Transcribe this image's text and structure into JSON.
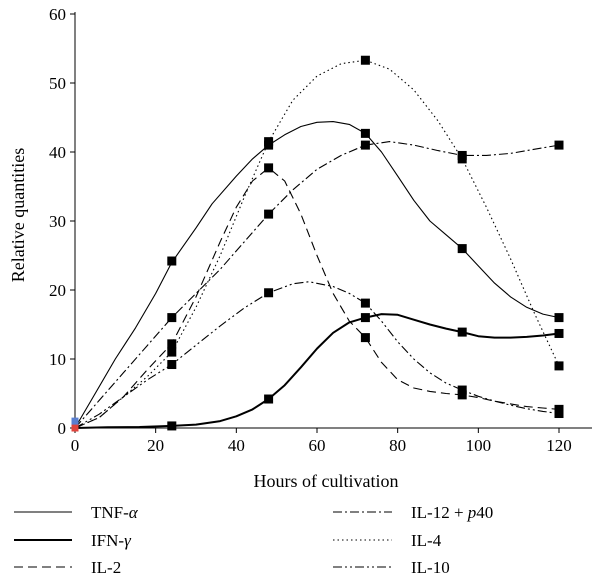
{
  "chart_data": {
    "type": "line",
    "title": "",
    "xlabel": "Hours of cultivation",
    "ylabel": "Relative quantities",
    "xlim": [
      0,
      128
    ],
    "ylim": [
      0,
      60
    ],
    "xticks": [
      0,
      20,
      40,
      60,
      80,
      100,
      120
    ],
    "yticks": [
      0,
      10,
      20,
      30,
      40,
      50,
      60
    ],
    "grid": false,
    "legend_position": "bottom",
    "series": [
      {
        "name": "TNF-α",
        "label_pre": "TNF-",
        "label_italic": "α",
        "label_post": "",
        "style": "solid",
        "weight": "thin",
        "points": [
          [
            0,
            0
          ],
          [
            24,
            24.2
          ],
          [
            48,
            41
          ],
          [
            72,
            42.7
          ],
          [
            96,
            26
          ],
          [
            120,
            16
          ]
        ],
        "curve": [
          [
            0,
            0
          ],
          [
            5,
            5
          ],
          [
            10,
            10
          ],
          [
            15,
            14.5
          ],
          [
            20,
            19.5
          ],
          [
            24,
            24
          ],
          [
            30,
            29
          ],
          [
            34,
            32.5
          ],
          [
            40,
            36.5
          ],
          [
            44,
            39
          ],
          [
            48,
            41
          ],
          [
            52,
            42.5
          ],
          [
            56,
            43.7
          ],
          [
            60,
            44.3
          ],
          [
            64,
            44.4
          ],
          [
            68,
            44
          ],
          [
            72,
            42.7
          ],
          [
            76,
            40
          ],
          [
            80,
            36.5
          ],
          [
            84,
            33
          ],
          [
            88,
            30
          ],
          [
            92,
            28
          ],
          [
            96,
            26
          ],
          [
            100,
            23.5
          ],
          [
            104,
            21
          ],
          [
            108,
            19
          ],
          [
            112,
            17.5
          ],
          [
            116,
            16.5
          ],
          [
            120,
            16
          ]
        ]
      },
      {
        "name": "IFN-γ",
        "label_pre": "IFN-",
        "label_italic": "γ",
        "label_post": "",
        "style": "solid",
        "weight": "thick",
        "points": [
          [
            0,
            0
          ],
          [
            24,
            0.3
          ],
          [
            48,
            4.2
          ],
          [
            72,
            16
          ],
          [
            96,
            13.9
          ],
          [
            120,
            13.7
          ]
        ],
        "curve": [
          [
            0,
            0
          ],
          [
            8,
            0.1
          ],
          [
            16,
            0.15
          ],
          [
            24,
            0.3
          ],
          [
            30,
            0.5
          ],
          [
            36,
            1
          ],
          [
            40,
            1.7
          ],
          [
            44,
            2.7
          ],
          [
            48,
            4.2
          ],
          [
            52,
            6.2
          ],
          [
            56,
            8.8
          ],
          [
            60,
            11.5
          ],
          [
            64,
            13.8
          ],
          [
            68,
            15.3
          ],
          [
            72,
            16
          ],
          [
            76,
            16.5
          ],
          [
            80,
            16.4
          ],
          [
            84,
            15.7
          ],
          [
            88,
            15
          ],
          [
            92,
            14.4
          ],
          [
            96,
            13.9
          ],
          [
            100,
            13.3
          ],
          [
            104,
            13.1
          ],
          [
            108,
            13.1
          ],
          [
            112,
            13.2
          ],
          [
            116,
            13.4
          ],
          [
            120,
            13.7
          ]
        ]
      },
      {
        "name": "IL-2",
        "label_pre": "IL-2",
        "label_italic": "",
        "label_post": "",
        "style": "dashed",
        "weight": "thin",
        "points": [
          [
            0,
            0
          ],
          [
            24,
            12.2
          ],
          [
            48,
            37.7
          ],
          [
            72,
            13.1
          ],
          [
            96,
            4.8
          ],
          [
            120,
            2.7
          ]
        ],
        "curve": [
          [
            0,
            0
          ],
          [
            6,
            1.5
          ],
          [
            12,
            4.5
          ],
          [
            18,
            8.5
          ],
          [
            24,
            12.2
          ],
          [
            30,
            19
          ],
          [
            36,
            27
          ],
          [
            40,
            32
          ],
          [
            44,
            35.8
          ],
          [
            48,
            37.7
          ],
          [
            52,
            35.8
          ],
          [
            56,
            31
          ],
          [
            60,
            25
          ],
          [
            64,
            19.5
          ],
          [
            68,
            15.5
          ],
          [
            72,
            13.1
          ],
          [
            76,
            9.5
          ],
          [
            80,
            7
          ],
          [
            84,
            5.8
          ],
          [
            88,
            5.3
          ],
          [
            92,
            5
          ],
          [
            96,
            4.8
          ],
          [
            100,
            4.4
          ],
          [
            104,
            3.9
          ],
          [
            108,
            3.5
          ],
          [
            112,
            3.1
          ],
          [
            116,
            2.9
          ],
          [
            120,
            2.7
          ]
        ]
      },
      {
        "name": "IL-12 + p40",
        "label_pre": "IL-12 + ",
        "label_italic": "p",
        "label_post": "40",
        "style": "dashdot",
        "weight": "thin",
        "points": [
          [
            0,
            0
          ],
          [
            24,
            16
          ],
          [
            48,
            31
          ],
          [
            72,
            41
          ],
          [
            96,
            39.5
          ],
          [
            120,
            41
          ]
        ],
        "curve": [
          [
            0,
            0
          ],
          [
            6,
            4
          ],
          [
            12,
            8
          ],
          [
            18,
            12
          ],
          [
            24,
            16
          ],
          [
            30,
            19.5
          ],
          [
            36,
            23
          ],
          [
            42,
            27
          ],
          [
            48,
            31
          ],
          [
            54,
            34.5
          ],
          [
            60,
            37.5
          ],
          [
            66,
            39.5
          ],
          [
            72,
            41
          ],
          [
            78,
            41.5
          ],
          [
            84,
            41
          ],
          [
            90,
            40.2
          ],
          [
            96,
            39.5
          ],
          [
            102,
            39.5
          ],
          [
            108,
            39.8
          ],
          [
            114,
            40.4
          ],
          [
            120,
            41
          ]
        ]
      },
      {
        "name": "IL-4",
        "label_pre": "IL-4",
        "label_italic": "",
        "label_post": "",
        "style": "dotted",
        "weight": "thin",
        "points": [
          [
            0,
            0
          ],
          [
            24,
            11
          ],
          [
            48,
            41.5
          ],
          [
            72,
            53.3
          ],
          [
            96,
            39
          ],
          [
            120,
            9
          ]
        ],
        "curve": [
          [
            0,
            0
          ],
          [
            6,
            1.5
          ],
          [
            12,
            4.5
          ],
          [
            18,
            7.5
          ],
          [
            24,
            11
          ],
          [
            30,
            17.5
          ],
          [
            36,
            25
          ],
          [
            42,
            33.5
          ],
          [
            48,
            41.5
          ],
          [
            54,
            47.5
          ],
          [
            60,
            51
          ],
          [
            66,
            52.8
          ],
          [
            72,
            53.3
          ],
          [
            78,
            52
          ],
          [
            84,
            49
          ],
          [
            90,
            44.5
          ],
          [
            96,
            39
          ],
          [
            102,
            32
          ],
          [
            108,
            24.5
          ],
          [
            114,
            16.5
          ],
          [
            120,
            9
          ]
        ]
      },
      {
        "name": "IL-10",
        "label_pre": "IL-10",
        "label_italic": "",
        "label_post": "",
        "style": "dashdotdot",
        "weight": "thin",
        "points": [
          [
            0,
            0
          ],
          [
            24,
            9.2
          ],
          [
            48,
            19.6
          ],
          [
            72,
            18.1
          ],
          [
            96,
            5.5
          ],
          [
            120,
            2.1
          ]
        ],
        "curve": [
          [
            0,
            0
          ],
          [
            6,
            2
          ],
          [
            12,
            4.5
          ],
          [
            18,
            7
          ],
          [
            24,
            9.2
          ],
          [
            30,
            12
          ],
          [
            36,
            14.8
          ],
          [
            42,
            17.4
          ],
          [
            48,
            19.6
          ],
          [
            54,
            20.9
          ],
          [
            58,
            21.2
          ],
          [
            64,
            20.5
          ],
          [
            68,
            19.5
          ],
          [
            72,
            18.1
          ],
          [
            76,
            15.5
          ],
          [
            80,
            12.5
          ],
          [
            84,
            10
          ],
          [
            88,
            8
          ],
          [
            92,
            6.5
          ],
          [
            96,
            5.5
          ],
          [
            100,
            4.6
          ],
          [
            104,
            3.9
          ],
          [
            108,
            3.3
          ],
          [
            112,
            2.8
          ],
          [
            116,
            2.4
          ],
          [
            120,
            2.1
          ]
        ]
      }
    ],
    "origin_markers": [
      {
        "color": "#e0443c",
        "y": 0
      },
      {
        "color": "#5a7fd0",
        "y": 1
      }
    ]
  }
}
